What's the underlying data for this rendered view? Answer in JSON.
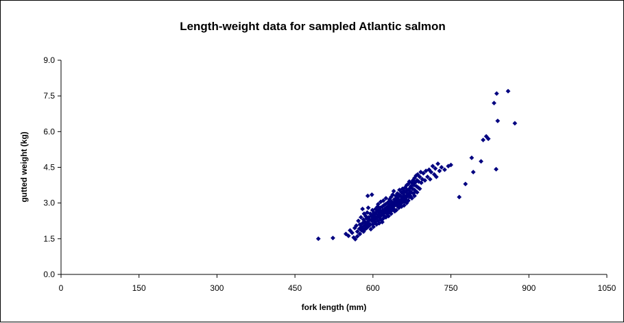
{
  "chart_data": {
    "type": "scatter",
    "title": "Length-weight data for sampled Atlantic salmon",
    "xlabel": "fork length (mm)",
    "ylabel": "gutted weight (kg)",
    "xlim": [
      0,
      1050
    ],
    "ylim": [
      0,
      9
    ],
    "xticks": [
      "0",
      "150",
      "300",
      "450",
      "600",
      "750",
      "900",
      "1050"
    ],
    "yticks": [
      "0.0",
      "1.5",
      "3.0",
      "4.5",
      "6.0",
      "7.5",
      "9.0"
    ],
    "grid": false,
    "legend": "none",
    "marker": "diamond",
    "color": "#000080",
    "series": [
      {
        "points": [
          [
            495,
            1.5
          ],
          [
            523,
            1.53
          ],
          [
            548,
            1.7
          ],
          [
            553,
            1.62
          ],
          [
            556,
            1.85
          ],
          [
            560,
            1.75
          ],
          [
            563,
            1.55
          ],
          [
            565,
            1.95
          ],
          [
            566,
            1.48
          ],
          [
            568,
            2.05
          ],
          [
            570,
            1.8
          ],
          [
            570,
            1.6
          ],
          [
            572,
            2.25
          ],
          [
            574,
            1.92
          ],
          [
            575,
            2.1
          ],
          [
            575,
            1.7
          ],
          [
            577,
            2.4
          ],
          [
            578,
            1.85
          ],
          [
            578,
            2.0
          ],
          [
            580,
            2.15
          ],
          [
            580,
            1.95
          ],
          [
            580,
            2.75
          ],
          [
            582,
            2.3
          ],
          [
            582,
            1.8
          ],
          [
            583,
            2.55
          ],
          [
            584,
            2.05
          ],
          [
            585,
            2.2
          ],
          [
            585,
            1.9
          ],
          [
            586,
            2.45
          ],
          [
            587,
            2.1
          ],
          [
            588,
            2.35
          ],
          [
            588,
            1.95
          ],
          [
            589,
            2.6
          ],
          [
            590,
            2.2
          ],
          [
            590,
            2.0
          ],
          [
            590,
            3.3
          ],
          [
            591,
            2.8
          ],
          [
            592,
            2.15
          ],
          [
            592,
            2.4
          ],
          [
            593,
            2.05
          ],
          [
            594,
            2.3
          ],
          [
            595,
            2.55
          ],
          [
            595,
            2.1
          ],
          [
            596,
            1.9
          ],
          [
            597,
            2.45
          ],
          [
            598,
            2.25
          ],
          [
            598,
            3.35
          ],
          [
            599,
            2.7
          ],
          [
            600,
            2.35
          ],
          [
            600,
            2.1
          ],
          [
            600,
            2.5
          ],
          [
            601,
            2.0
          ],
          [
            602,
            2.6
          ],
          [
            602,
            2.3
          ],
          [
            603,
            2.45
          ],
          [
            604,
            2.2
          ],
          [
            605,
            2.55
          ],
          [
            605,
            2.75
          ],
          [
            606,
            2.35
          ],
          [
            607,
            2.1
          ],
          [
            608,
            2.65
          ],
          [
            608,
            2.4
          ],
          [
            609,
            2.85
          ],
          [
            610,
            2.5
          ],
          [
            610,
            2.25
          ],
          [
            610,
            2.95
          ],
          [
            611,
            2.7
          ],
          [
            612,
            2.4
          ],
          [
            612,
            2.15
          ],
          [
            613,
            2.6
          ],
          [
            614,
            2.8
          ],
          [
            615,
            2.45
          ],
          [
            615,
            2.3
          ],
          [
            615,
            3.05
          ],
          [
            616,
            2.65
          ],
          [
            617,
            2.5
          ],
          [
            618,
            2.85
          ],
          [
            618,
            2.2
          ],
          [
            619,
            2.7
          ],
          [
            620,
            2.55
          ],
          [
            620,
            2.35
          ],
          [
            620,
            3.1
          ],
          [
            621,
            2.9
          ],
          [
            622,
            2.6
          ],
          [
            622,
            2.45
          ],
          [
            623,
            2.75
          ],
          [
            624,
            2.95
          ],
          [
            625,
            2.65
          ],
          [
            625,
            2.4
          ],
          [
            625,
            3.2
          ],
          [
            626,
            2.8
          ],
          [
            627,
            2.55
          ],
          [
            628,
            3.0
          ],
          [
            628,
            2.7
          ],
          [
            629,
            2.85
          ],
          [
            630,
            2.6
          ],
          [
            630,
            3.05
          ],
          [
            630,
            2.45
          ],
          [
            631,
            2.9
          ],
          [
            632,
            2.75
          ],
          [
            632,
            3.15
          ],
          [
            633,
            2.65
          ],
          [
            634,
            2.95
          ],
          [
            635,
            2.8
          ],
          [
            635,
            3.25
          ],
          [
            635,
            2.55
          ],
          [
            636,
            3.05
          ],
          [
            637,
            2.7
          ],
          [
            638,
            2.9
          ],
          [
            638,
            3.35
          ],
          [
            639,
            2.85
          ],
          [
            640,
            3.0
          ],
          [
            640,
            2.75
          ],
          [
            640,
            3.5
          ],
          [
            641,
            3.15
          ],
          [
            642,
            2.9
          ],
          [
            642,
            2.65
          ],
          [
            643,
            3.1
          ],
          [
            644,
            3.3
          ],
          [
            645,
            2.95
          ],
          [
            645,
            3.2
          ],
          [
            645,
            2.7
          ],
          [
            646,
            3.05
          ],
          [
            647,
            3.4
          ],
          [
            648,
            3.15
          ],
          [
            648,
            2.85
          ],
          [
            649,
            3.25
          ],
          [
            650,
            3.0
          ],
          [
            650,
            3.35
          ],
          [
            650,
            2.8
          ],
          [
            651,
            3.55
          ],
          [
            652,
            3.1
          ],
          [
            652,
            2.95
          ],
          [
            653,
            3.3
          ],
          [
            654,
            3.15
          ],
          [
            655,
            3.45
          ],
          [
            655,
            3.0
          ],
          [
            655,
            2.85
          ],
          [
            656,
            3.25
          ],
          [
            657,
            3.6
          ],
          [
            658,
            3.1
          ],
          [
            658,
            3.4
          ],
          [
            659,
            3.2
          ],
          [
            660,
            3.5
          ],
          [
            660,
            3.05
          ],
          [
            660,
            2.9
          ],
          [
            661,
            3.3
          ],
          [
            662,
            3.65
          ],
          [
            663,
            3.15
          ],
          [
            664,
            3.45
          ],
          [
            665,
            3.25
          ],
          [
            665,
            3.75
          ],
          [
            665,
            3.0
          ],
          [
            666,
            3.55
          ],
          [
            667,
            3.35
          ],
          [
            668,
            3.8
          ],
          [
            668,
            3.1
          ],
          [
            669,
            3.4
          ],
          [
            670,
            3.6
          ],
          [
            670,
            3.25
          ],
          [
            670,
            3.9
          ],
          [
            671,
            3.5
          ],
          [
            672,
            3.3
          ],
          [
            673,
            3.7
          ],
          [
            674,
            3.45
          ],
          [
            675,
            3.85
          ],
          [
            675,
            3.2
          ],
          [
            676,
            3.6
          ],
          [
            677,
            3.95
          ],
          [
            678,
            3.4
          ],
          [
            679,
            3.75
          ],
          [
            680,
            3.55
          ],
          [
            680,
            4.05
          ],
          [
            680,
            3.3
          ],
          [
            681,
            3.85
          ],
          [
            682,
            3.5
          ],
          [
            683,
            4.15
          ],
          [
            684,
            3.7
          ],
          [
            685,
            3.95
          ],
          [
            685,
            3.45
          ],
          [
            686,
            4.2
          ],
          [
            687,
            3.65
          ],
          [
            688,
            3.9
          ],
          [
            690,
            4.1
          ],
          [
            690,
            3.6
          ],
          [
            692,
            4.3
          ],
          [
            693,
            3.85
          ],
          [
            695,
            4.0
          ],
          [
            697,
            4.25
          ],
          [
            700,
            3.95
          ],
          [
            702,
            4.35
          ],
          [
            705,
            4.1
          ],
          [
            708,
            4.4
          ],
          [
            710,
            4.0
          ],
          [
            712,
            4.3
          ],
          [
            715,
            4.55
          ],
          [
            718,
            4.2
          ],
          [
            720,
            4.45
          ],
          [
            722,
            4.1
          ],
          [
            725,
            4.65
          ],
          [
            728,
            4.35
          ],
          [
            732,
            4.5
          ],
          [
            738,
            4.4
          ],
          [
            745,
            4.55
          ],
          [
            750,
            4.6
          ],
          [
            766,
            3.25
          ],
          [
            778,
            3.8
          ],
          [
            790,
            4.9
          ],
          [
            793,
            4.3
          ],
          [
            808,
            4.75
          ],
          [
            812,
            5.65
          ],
          [
            818,
            5.8
          ],
          [
            822,
            5.7
          ],
          [
            833,
            7.2
          ],
          [
            837,
            4.42
          ],
          [
            838,
            7.6
          ],
          [
            840,
            6.45
          ],
          [
            860,
            7.7
          ],
          [
            873,
            6.35
          ]
        ]
      }
    ]
  }
}
